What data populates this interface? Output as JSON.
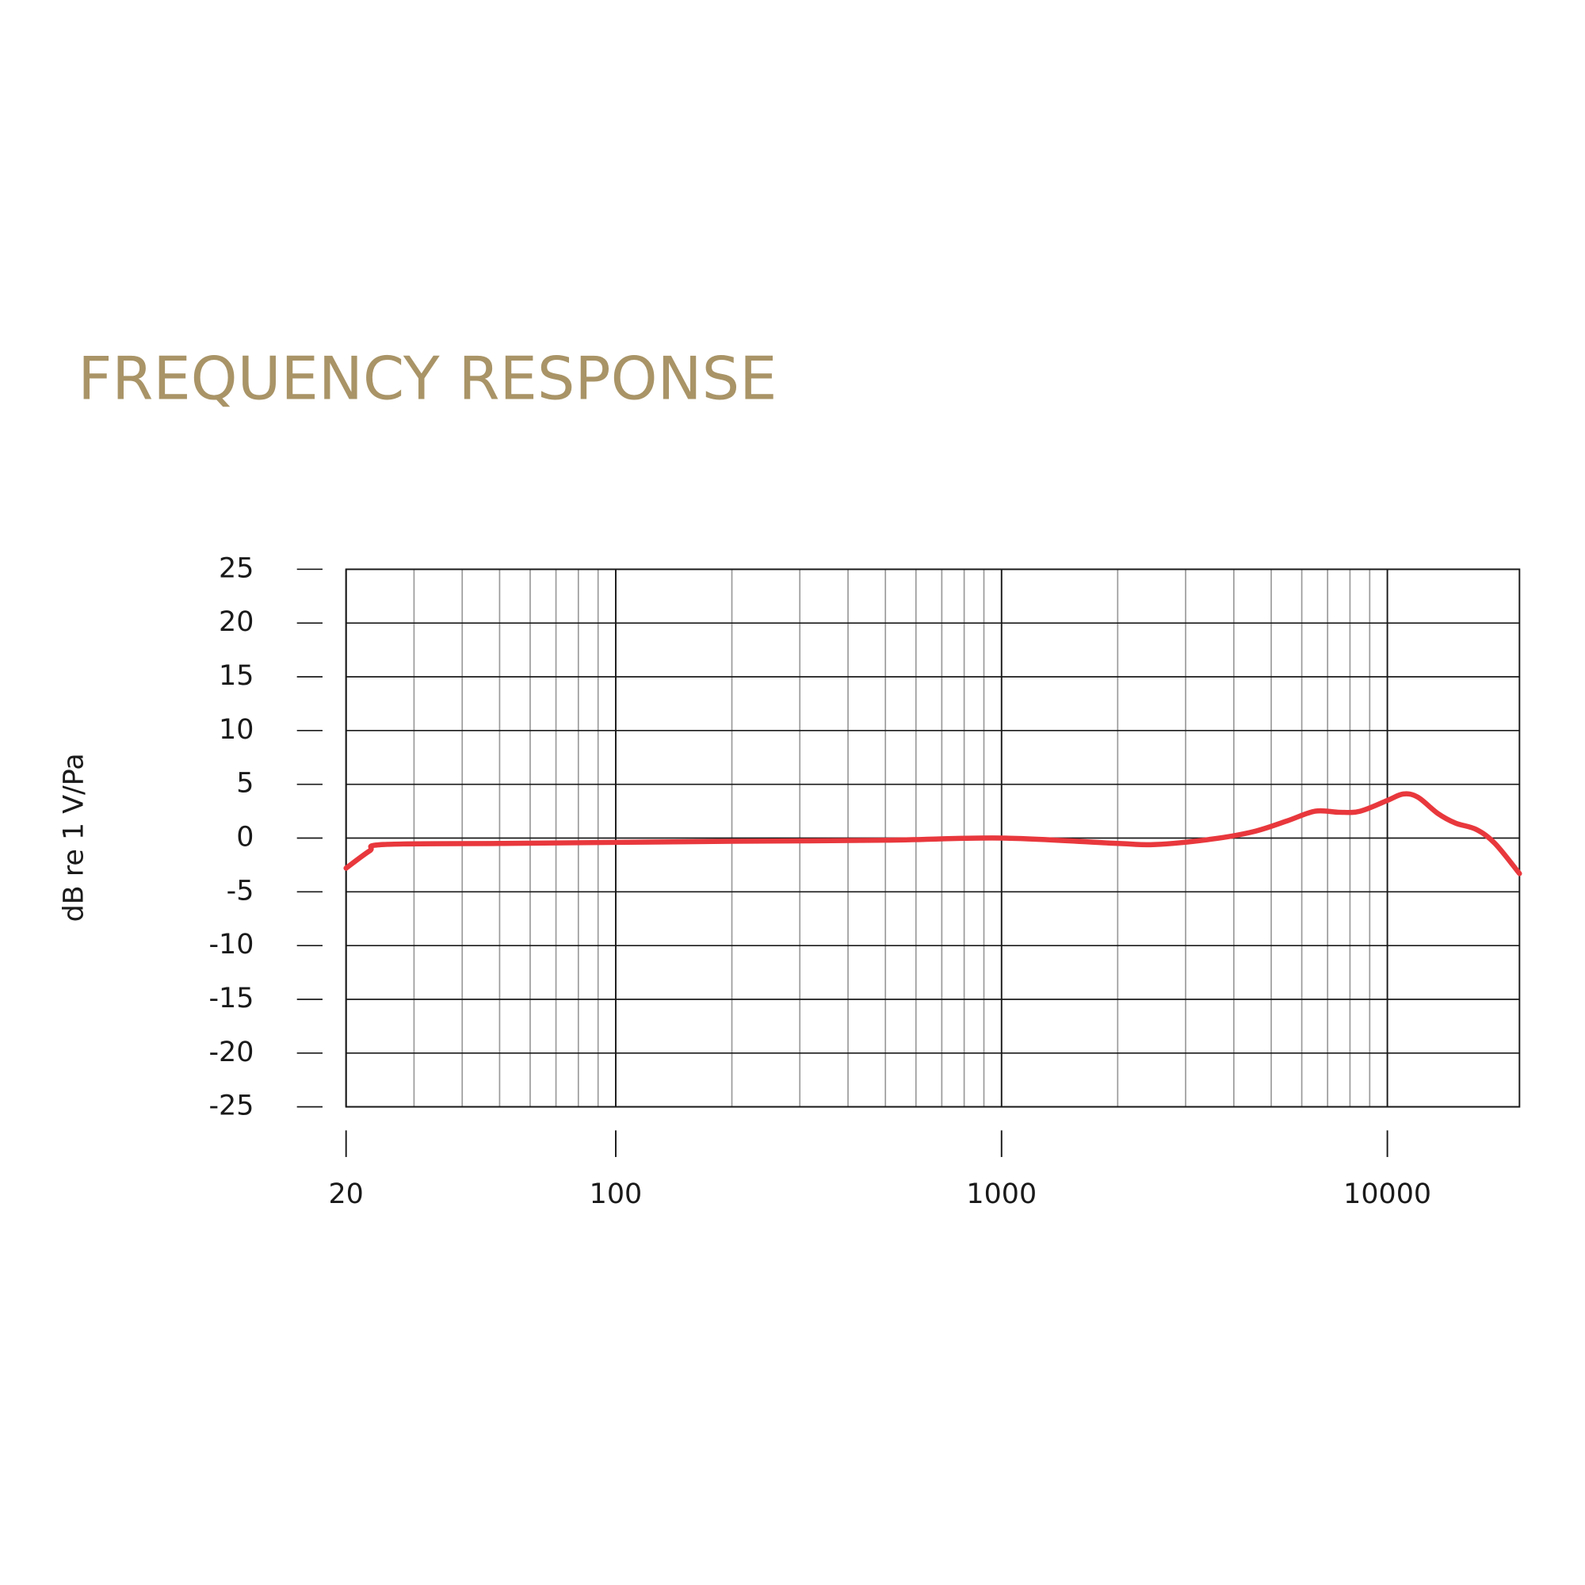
{
  "chart_data": {
    "type": "line",
    "title": "FREQUENCY RESPONSE",
    "y_label": "dB re 1 V/Pa",
    "x": [
      20,
      23,
      25,
      50,
      100,
      200,
      500,
      1000,
      2000,
      2500,
      3500,
      4500,
      5500,
      6500,
      7500,
      8500,
      10000,
      11000,
      12000,
      13500,
      15000,
      17000,
      19000,
      22000
    ],
    "series": [
      {
        "color": "#e8383d",
        "values": [
          -2.8,
          -1.2,
          -0.6,
          -0.5,
          -0.4,
          -0.3,
          -0.2,
          0,
          -0.5,
          -0.6,
          -0.1,
          0.6,
          1.6,
          2.5,
          2.4,
          2.5,
          3.5,
          4.1,
          3.8,
          2.3,
          1.4,
          0.8,
          -0.5,
          -3.3
        ]
      }
    ],
    "xlim": [
      20,
      22000
    ],
    "xticks": [
      20,
      100,
      1000,
      10000
    ],
    "x_log": true,
    "xgrid_minor": [
      30,
      40,
      50,
      60,
      70,
      80,
      90,
      200,
      300,
      400,
      500,
      600,
      700,
      800,
      900,
      2000,
      3000,
      4000,
      5000,
      6000,
      7000,
      8000,
      9000
    ],
    "ylim": [
      -25,
      25
    ],
    "yticks": [
      -25,
      -20,
      -15,
      -10,
      -5,
      0,
      5,
      10,
      15,
      20,
      25
    ],
    "grid": true,
    "title_color": "#a99467"
  }
}
